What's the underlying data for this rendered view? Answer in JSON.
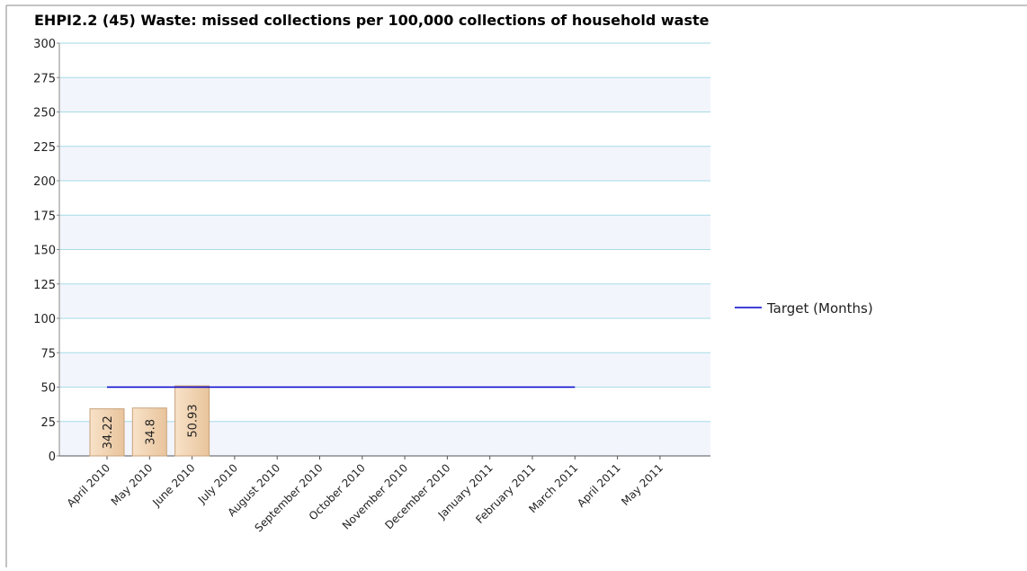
{
  "chart_data": {
    "type": "bar",
    "title": "EHPI2.2 (45) Waste: missed collections per 100,000 collections of household waste",
    "categories": [
      "April 2010",
      "May 2010",
      "June 2010",
      "July 2010",
      "August 2010",
      "September 2010",
      "October 2010",
      "November 2010",
      "December 2010",
      "January 2011",
      "February 2011",
      "March 2011",
      "April 2011",
      "May 2011"
    ],
    "series": [
      {
        "color": "#f3d5b3",
        "values": [
          34.22,
          34.8,
          50.93,
          null,
          null,
          null,
          null,
          null,
          null,
          null,
          null,
          null,
          null,
          null
        ]
      },
      {
        "name": "Target (Months)",
        "type": "line",
        "color": "#0000cc",
        "values": [
          50,
          50,
          50,
          50,
          50,
          50,
          50,
          50,
          50,
          50,
          50,
          50,
          null,
          null
        ]
      }
    ],
    "ylim": [
      0,
      300
    ],
    "yticks": [
      0,
      25,
      50,
      75,
      100,
      125,
      150,
      175,
      200,
      225,
      250,
      275,
      300
    ],
    "grid": true,
    "legend": "right"
  }
}
